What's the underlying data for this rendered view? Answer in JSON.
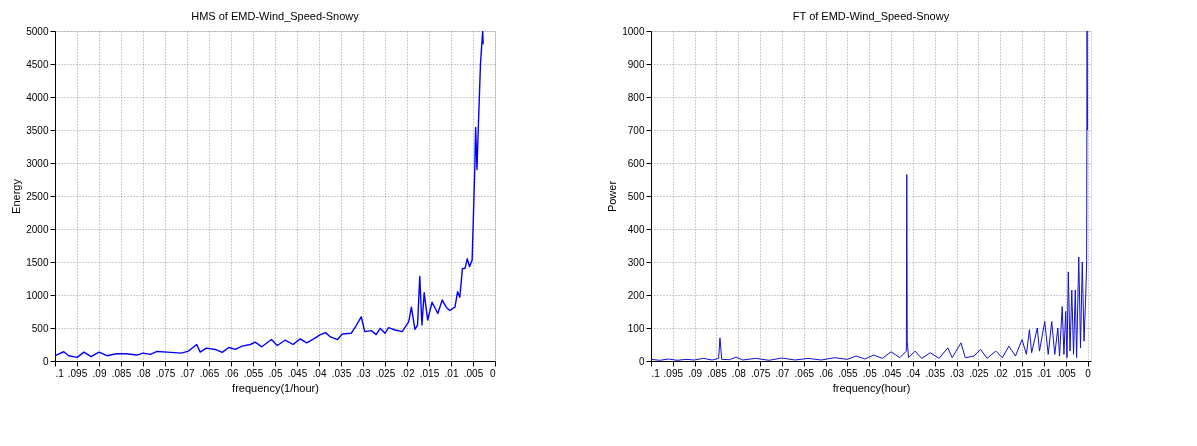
{
  "chart_data": [
    {
      "type": "line",
      "title": "HMS of EMD-Wind_Speed-Snowy",
      "xlabel": "frequency(1/hour)",
      "ylabel": "Energy",
      "xlim": [
        0.1,
        0
      ],
      "ylim": [
        0,
        5000
      ],
      "xticks": [
        {
          "value": 0.1,
          "label": ".1"
        },
        {
          "value": 0.095,
          "label": ".095"
        },
        {
          "value": 0.09,
          "label": ".09"
        },
        {
          "value": 0.085,
          "label": ".085"
        },
        {
          "value": 0.08,
          "label": ".08"
        },
        {
          "value": 0.075,
          "label": ".075"
        },
        {
          "value": 0.07,
          "label": ".07"
        },
        {
          "value": 0.065,
          "label": ".065"
        },
        {
          "value": 0.06,
          "label": ".06"
        },
        {
          "value": 0.055,
          "label": ".055"
        },
        {
          "value": 0.05,
          "label": ".05"
        },
        {
          "value": 0.045,
          "label": ".045"
        },
        {
          "value": 0.04,
          "label": ".04"
        },
        {
          "value": 0.035,
          "label": ".035"
        },
        {
          "value": 0.03,
          "label": ".03"
        },
        {
          "value": 0.025,
          "label": ".025"
        },
        {
          "value": 0.02,
          "label": ".02"
        },
        {
          "value": 0.015,
          "label": ".015"
        },
        {
          "value": 0.01,
          "label": ".01"
        },
        {
          "value": 0.005,
          "label": ".005"
        },
        0
      ],
      "yticks": [
        0,
        500,
        1000,
        1500,
        2000,
        2500,
        3000,
        3500,
        4000,
        4500,
        5000
      ],
      "grid": true,
      "marker": "none",
      "line_style": "solid",
      "x": [
        0.1,
        0.098,
        0.0969,
        0.095,
        0.0934,
        0.0918,
        0.09,
        0.0882,
        0.086,
        0.0838,
        0.0814,
        0.08,
        0.0783,
        0.0768,
        0.0745,
        0.0714,
        0.0698,
        0.0678,
        0.067,
        0.0656,
        0.0636,
        0.062,
        0.0605,
        0.059,
        0.0575,
        0.0556,
        0.0545,
        0.053,
        0.0508,
        0.0495,
        0.0477,
        0.0459,
        0.0443,
        0.0428,
        0.0412,
        0.0397,
        0.0385,
        0.0374,
        0.0358,
        0.0347,
        0.0327,
        0.0316,
        0.0304,
        0.0296,
        0.0281,
        0.027,
        0.0261,
        0.025,
        0.0242,
        0.0227,
        0.0211,
        0.0196,
        0.019,
        0.0182,
        0.0176,
        0.0171,
        0.0166,
        0.0161,
        0.0153,
        0.0143,
        0.013,
        0.012,
        0.0111,
        0.0103,
        0.0091,
        0.0085,
        0.008,
        0.0074,
        0.0068,
        0.0063,
        0.0058,
        0.0052,
        0.0046,
        0.0044,
        0.0041,
        0.0038,
        0.0033,
        0.0028,
        0.0027
      ],
      "series": [
        {
          "color": "#0000ff",
          "values": [
            80,
            140,
            80,
            55,
            135,
            65,
            135,
            80,
            110,
            110,
            90,
            120,
            100,
            145,
            135,
            120,
            145,
            250,
            135,
            195,
            175,
            130,
            205,
            175,
            225,
            250,
            285,
            215,
            325,
            235,
            315,
            250,
            335,
            275,
            335,
            400,
            430,
            365,
            325,
            410,
            420,
            530,
            670,
            445,
            460,
            400,
            495,
            420,
            505,
            470,
            445,
            595,
            815,
            480,
            545,
            1280,
            545,
            1035,
            620,
            890,
            720,
            925,
            815,
            765,
            815,
            1050,
            965,
            1400,
            1405,
            1550,
            1430,
            1525,
            2900,
            3540,
            2900,
            3520,
            4500,
            5000,
            4800
          ]
        }
      ]
    },
    {
      "type": "line",
      "title": "FT of EMD-Wind_Speed-Snowy",
      "xlabel": "frequency(hour)",
      "ylabel": "Power",
      "xlim": [
        0.1,
        -0.0008
      ],
      "ylim": [
        0,
        1000
      ],
      "xticks": [
        {
          "value": 0.1,
          "label": ".1"
        },
        {
          "value": 0.095,
          "label": ".095"
        },
        {
          "value": 0.09,
          "label": ".09"
        },
        {
          "value": 0.085,
          "label": ".085"
        },
        {
          "value": 0.08,
          "label": ".08"
        },
        {
          "value": 0.075,
          "label": ".075"
        },
        {
          "value": 0.07,
          "label": ".07"
        },
        {
          "value": 0.065,
          "label": ".065"
        },
        {
          "value": 0.06,
          "label": ".06"
        },
        {
          "value": 0.055,
          "label": ".055"
        },
        {
          "value": 0.05,
          "label": ".05"
        },
        {
          "value": 0.045,
          "label": ".045"
        },
        {
          "value": 0.04,
          "label": ".04"
        },
        {
          "value": 0.035,
          "label": ".035"
        },
        {
          "value": 0.03,
          "label": ".03"
        },
        {
          "value": 0.025,
          "label": ".025"
        },
        {
          "value": 0.02,
          "label": ".02"
        },
        {
          "value": 0.015,
          "label": ".015"
        },
        {
          "value": 0.01,
          "label": ".01"
        },
        {
          "value": 0.005,
          "label": ".005"
        },
        0
      ],
      "yticks": [
        0,
        100,
        200,
        300,
        400,
        500,
        600,
        700,
        800,
        900,
        1000
      ],
      "grid": true,
      "marker": "none",
      "line_style": "solid",
      "x": [
        0.1,
        0.098,
        0.096,
        0.094,
        0.092,
        0.09,
        0.088,
        0.086,
        0.0845,
        0.0842,
        0.0838,
        0.082,
        0.0805,
        0.079,
        0.076,
        0.073,
        0.07,
        0.067,
        0.064,
        0.061,
        0.058,
        0.055,
        0.053,
        0.051,
        0.049,
        0.047,
        0.045,
        0.043,
        0.0415,
        0.0414,
        0.0413,
        0.041,
        0.0395,
        0.038,
        0.036,
        0.034,
        0.032,
        0.031,
        0.029,
        0.028,
        0.026,
        0.0245,
        0.023,
        0.021,
        0.0195,
        0.018,
        0.0165,
        0.015,
        0.014,
        0.0133,
        0.0128,
        0.0115,
        0.011,
        0.0098,
        0.009,
        0.0082,
        0.0075,
        0.0068,
        0.0064,
        0.0058,
        0.0054,
        0.005,
        0.0047,
        0.0044,
        0.004,
        0.0036,
        0.0032,
        0.0028,
        0.0025,
        0.002,
        0.0016,
        0.0012,
        0.0008,
        0.0004,
        0.0002,
        0.0001,
        0
      ],
      "series": [
        {
          "color": "#1010d0",
          "values": [
            5,
            2,
            6,
            2,
            5,
            3,
            8,
            3,
            8,
            70,
            5,
            4,
            12,
            3,
            8,
            2,
            9,
            3,
            8,
            3,
            10,
            5,
            15,
            6,
            18,
            8,
            28,
            10,
            30,
            565,
            60,
            10,
            30,
            8,
            25,
            8,
            40,
            10,
            55,
            10,
            15,
            35,
            8,
            30,
            10,
            45,
            15,
            65,
            20,
            95,
            25,
            100,
            30,
            120,
            20,
            120,
            20,
            100,
            15,
            165,
            20,
            150,
            10,
            270,
            30,
            215,
            20,
            215,
            10,
            315,
            40,
            300,
            60,
            200,
            300,
            1000,
            700
          ]
        }
      ]
    }
  ]
}
